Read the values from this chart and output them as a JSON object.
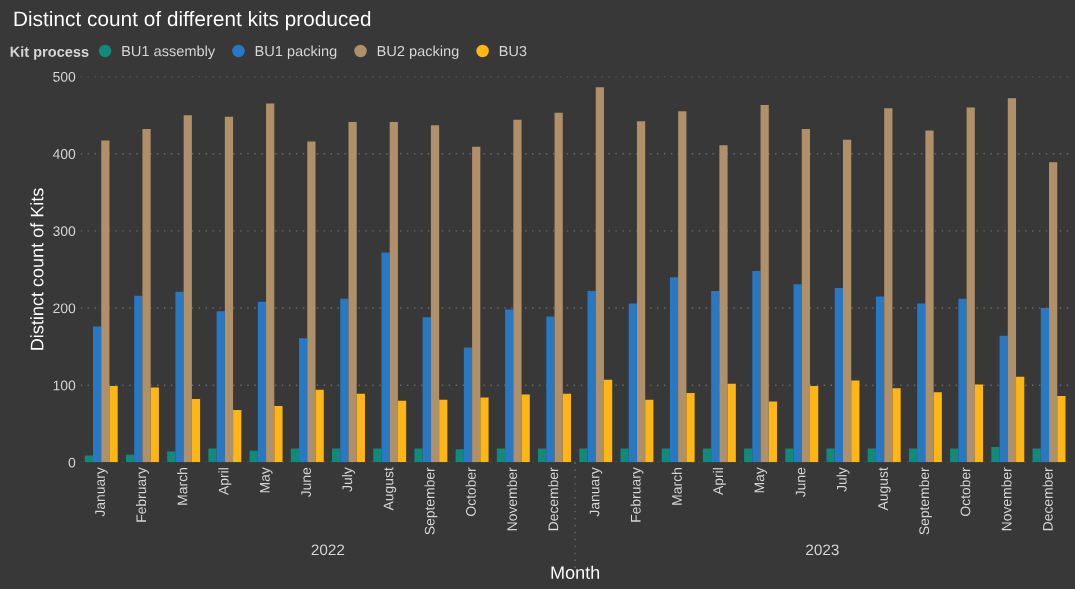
{
  "chart_data": {
    "type": "bar",
    "title": "Distinct count of different kits produced",
    "xlabel": "Month",
    "ylabel": "Distinct count of Kits",
    "legend_title": "Kit process",
    "legend": "top left",
    "grid": "y",
    "categories": [
      "January",
      "February",
      "March",
      "April",
      "May",
      "June",
      "July",
      "August",
      "September",
      "October",
      "November",
      "December",
      "January",
      "February",
      "March",
      "April",
      "May",
      "June",
      "July",
      "August",
      "September",
      "October",
      "November",
      "December"
    ],
    "annotations": [
      "2022",
      "2023"
    ],
    "ylim": [
      0,
      500
    ],
    "yticks": [
      0,
      100,
      200,
      300,
      400,
      500
    ],
    "series": [
      {
        "name": "BU1 assembly",
        "color": "#118a7a",
        "values": [
          9,
          10,
          14,
          18,
          15,
          18,
          18,
          18,
          18,
          17,
          18,
          18,
          18,
          18,
          18,
          18,
          18,
          18,
          18,
          18,
          18,
          18,
          20,
          18
        ]
      },
      {
        "name": "BU1 packing",
        "color": "#2878c3",
        "values": [
          176,
          216,
          221,
          196,
          208,
          161,
          212,
          272,
          188,
          149,
          198,
          189,
          222,
          206,
          240,
          222,
          248,
          231,
          226,
          215,
          206,
          212,
          164,
          200
        ]
      },
      {
        "name": "BU2 packing",
        "color": "#b09068",
        "values": [
          417,
          432,
          450,
          448,
          465,
          416,
          441,
          441,
          437,
          409,
          444,
          453,
          486,
          442,
          455,
          411,
          463,
          432,
          418,
          459,
          430,
          460,
          472,
          389
        ]
      },
      {
        "name": "BU3",
        "color": "#fdb614",
        "values": [
          99,
          97,
          82,
          68,
          73,
          94,
          89,
          80,
          81,
          84,
          88,
          89,
          107,
          81,
          90,
          102,
          79,
          99,
          106,
          96,
          91,
          101,
          111,
          86
        ]
      }
    ]
  }
}
